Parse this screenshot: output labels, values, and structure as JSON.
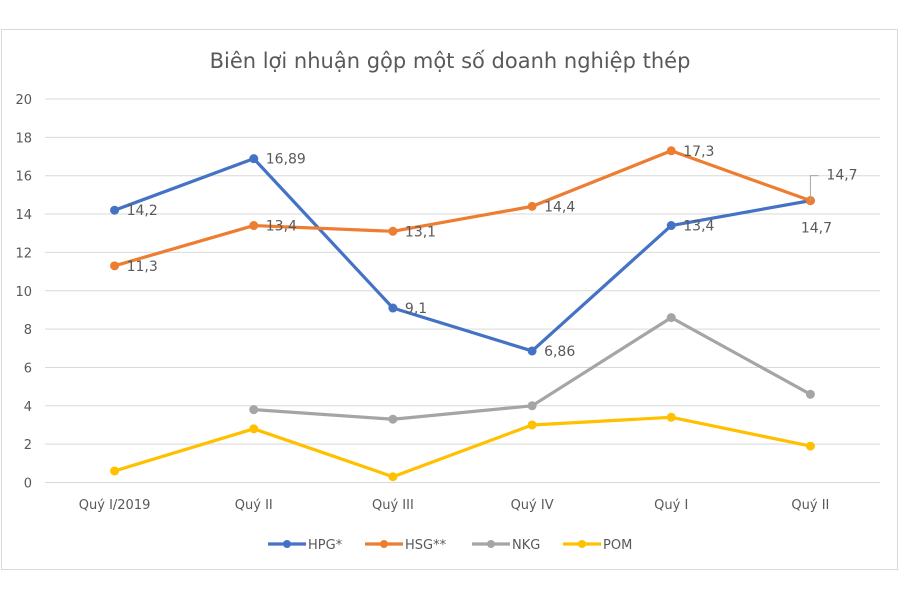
{
  "chart_data": {
    "type": "line",
    "title": "Biên lợi nhuận gộp một số doanh nghiệp thép",
    "categories": [
      "Quý I/2019",
      "Quý II",
      "Quý III",
      "Quý IV",
      "Quý I",
      "Quý II"
    ],
    "ylim": [
      0,
      20
    ],
    "yticks": [
      0,
      2,
      4,
      6,
      8,
      10,
      12,
      14,
      16,
      18,
      20
    ],
    "grid": true,
    "legend_position": "bottom",
    "series": [
      {
        "name": "HPG*",
        "color": "#4472c4",
        "values": [
          14.2,
          16.89,
          9.1,
          6.86,
          13.4,
          14.7
        ],
        "labels": [
          "14,2",
          "16,89",
          "9,1",
          "6,86",
          "13,4",
          "14,7"
        ]
      },
      {
        "name": "HSG**",
        "color": "#ed7d31",
        "values": [
          11.3,
          13.4,
          13.1,
          14.4,
          17.3,
          14.7
        ],
        "labels": [
          "11,3",
          "13,4",
          "13,1",
          "14,4",
          "17,3",
          "14,7"
        ]
      },
      {
        "name": "NKG",
        "color": "#a5a5a5",
        "values": [
          null,
          3.8,
          3.3,
          4.0,
          8.6,
          4.6
        ],
        "labels": null
      },
      {
        "name": "POM",
        "color": "#ffc000",
        "values": [
          0.6,
          2.8,
          0.3,
          3.0,
          3.4,
          1.9
        ],
        "labels": null
      }
    ]
  }
}
